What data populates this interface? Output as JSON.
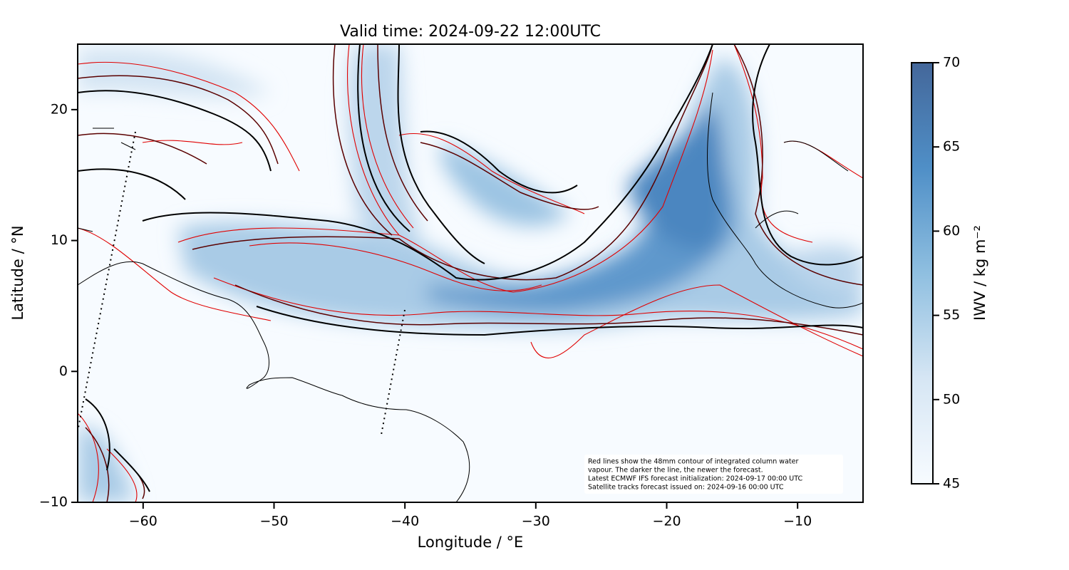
{
  "chart_data": {
    "type": "map",
    "title": "Valid time: 2024-09-22 12:00UTC",
    "x_label": "Longitude / °E",
    "y_label": "Latitude / °N",
    "xlim": [
      -65,
      -5
    ],
    "ylim": [
      -10,
      25
    ],
    "xticks": [
      {
        "value": -60,
        "label": "−60"
      },
      {
        "value": -50,
        "label": "−50"
      },
      {
        "value": -40,
        "label": "−40"
      },
      {
        "value": -30,
        "label": "−30"
      },
      {
        "value": -20,
        "label": "−20"
      },
      {
        "value": -10,
        "label": "−10"
      }
    ],
    "yticks": [
      {
        "value": -10,
        "label": "−10"
      },
      0,
      10,
      20
    ],
    "colorbar": {
      "label": "IWV / kg m⁻²",
      "lim": [
        45,
        70
      ],
      "ticks": [
        45,
        50,
        55,
        60,
        65,
        70
      ]
    },
    "annotation": [
      "Red lines show the 48mm contour of integrated column water",
      "vapour. The darker the line, the newer the forecast.",
      "Latest ECMWF IFS forecast initialization: 2024-09-17 00:00 UTC",
      "Satellite tracks forecast issued on: 2024-09-16 00:00 UTC"
    ]
  }
}
